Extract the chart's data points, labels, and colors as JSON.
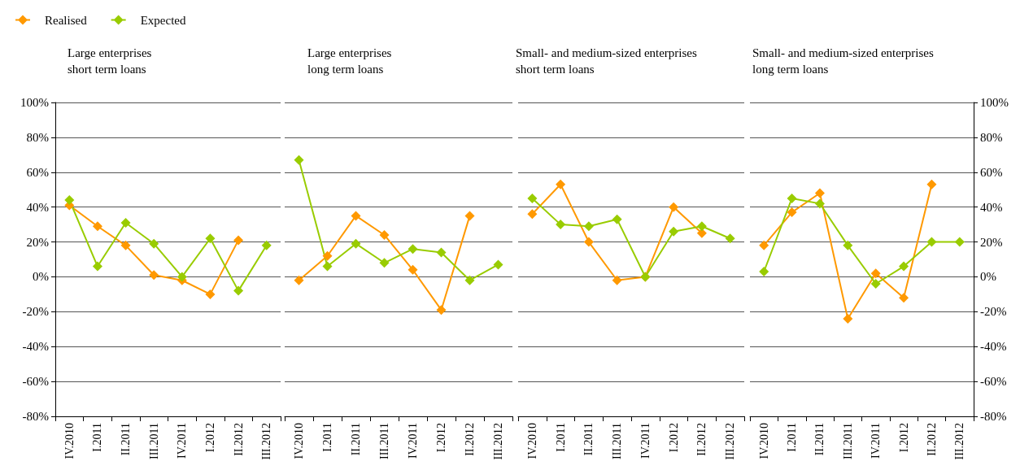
{
  "chart_data": [
    {
      "type": "line",
      "title": "Large enterprises\nshort term loans",
      "categories": [
        "IV.2010",
        "I.2011",
        "II.2011",
        "III.2011",
        "IV.2011",
        "I.2012",
        "II.2012",
        "III.2012"
      ],
      "legend": "top left",
      "marker": "diamond",
      "grid": "y",
      "ylim": [
        -80,
        100
      ],
      "yticks": [
        {
          "value": -80,
          "label": "-80%"
        },
        {
          "value": -60,
          "label": "-60%"
        },
        {
          "value": -40,
          "label": "-40%"
        },
        {
          "value": -20,
          "label": "-20%"
        },
        {
          "value": 0,
          "label": "0%"
        },
        {
          "value": 20,
          "label": "20%"
        },
        {
          "value": 40,
          "label": "40%"
        },
        {
          "value": 60,
          "label": "60%"
        },
        {
          "value": 80,
          "label": "80%"
        },
        {
          "value": 100,
          "label": "100%"
        }
      ],
      "series": [
        {
          "name": "Realised",
          "color": "#ff9900",
          "values": [
            41,
            29,
            18,
            1,
            -2,
            -10,
            21,
            null
          ]
        },
        {
          "name": "Expected",
          "color": "#99cc00",
          "values": [
            44,
            6,
            31,
            19,
            0,
            22,
            -8,
            18
          ]
        }
      ]
    },
    {
      "type": "line",
      "title": "Large enterprises\nlong term loans",
      "categories": [
        "IV.2010",
        "I.2011",
        "II.2011",
        "III.2011",
        "IV.2011",
        "I.2012",
        "II.2012",
        "III.2012"
      ],
      "marker": "diamond",
      "grid": "y",
      "tick_labels": "x",
      "ylim": [
        -80,
        100
      ],
      "yticks": [
        -80,
        -60,
        -40,
        -20,
        0,
        20,
        40,
        60,
        80,
        100
      ],
      "series": [
        {
          "color": "#ff9900",
          "values": [
            -2,
            12,
            35,
            24,
            4,
            -19,
            35,
            null
          ]
        },
        {
          "color": "#99cc00",
          "values": [
            67,
            6,
            19,
            8,
            16,
            14,
            -2,
            7
          ]
        }
      ]
    },
    {
      "type": "line",
      "title": "Small- and medium-sized enterprises\nshort term loans",
      "categories": [
        "IV.2010",
        "I.2011",
        "II.2011",
        "III.2011",
        "IV.2011",
        "I.2012",
        "II.2012",
        "III.2012"
      ],
      "marker": "diamond",
      "grid": "y",
      "tick_labels": "x",
      "ylim": [
        -80,
        100
      ],
      "yticks": [
        -80,
        -60,
        -40,
        -20,
        0,
        20,
        40,
        60,
        80,
        100
      ],
      "series": [
        {
          "color": "#ff9900",
          "values": [
            36,
            53,
            20,
            -2,
            0,
            40,
            25,
            null
          ]
        },
        {
          "color": "#99cc00",
          "values": [
            45,
            30,
            29,
            33,
            0,
            26,
            29,
            22
          ]
        }
      ]
    },
    {
      "type": "line",
      "title": "Small- and medium-sized enterprises\nlong term loans",
      "categories": [
        "IV.2010",
        "I.2011",
        "II.2011",
        "III.2011",
        "IV.2011",
        "I.2012",
        "II.2012",
        "III.2012"
      ],
      "marker": "diamond",
      "grid": "y",
      "y2lim": [
        -80,
        100
      ],
      "y2ticks": [
        {
          "value": -80,
          "label": "-80%"
        },
        {
          "value": -60,
          "label": "-60%"
        },
        {
          "value": -40,
          "label": "-40%"
        },
        {
          "value": -20,
          "label": "-20%"
        },
        {
          "value": 0,
          "label": "0%"
        },
        {
          "value": 20,
          "label": "20%"
        },
        {
          "value": 40,
          "label": "40%"
        },
        {
          "value": 60,
          "label": "60%"
        },
        {
          "value": 80,
          "label": "80%"
        },
        {
          "value": 100,
          "label": "100%"
        }
      ],
      "series": [
        {
          "color": "#ff9900",
          "axis": "y2",
          "values": [
            18,
            37,
            48,
            -24,
            2,
            -12,
            53,
            null
          ]
        },
        {
          "color": "#99cc00",
          "axis": "y2",
          "values": [
            3,
            45,
            42,
            18,
            -4,
            6,
            20,
            20
          ]
        }
      ]
    }
  ]
}
